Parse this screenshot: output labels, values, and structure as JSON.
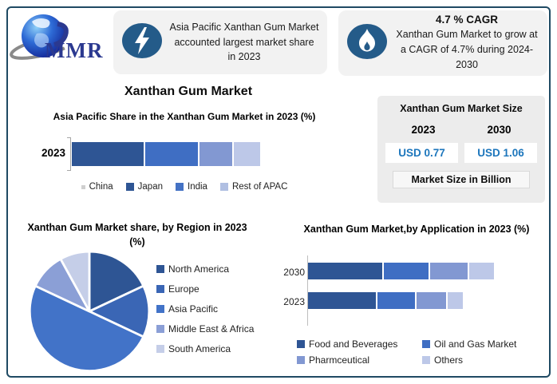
{
  "logo": {
    "text": "MMR"
  },
  "header": {
    "callout_share": {
      "icon": "lightning-icon",
      "text": "Asia Pacific Xanthan Gum Market accounted largest market share in 2023"
    },
    "callout_cagr": {
      "icon": "flame-icon",
      "title": "4.7 % CAGR",
      "text": "Xanthan Gum Market to grow at a CAGR of 4.7% during 2024-2030"
    }
  },
  "main_title": "Xanthan Gum Market",
  "market_size": {
    "title": "Xanthan Gum Market Size",
    "years": [
      "2023",
      "2030"
    ],
    "values": [
      "USD 0.77",
      "USD 1.06"
    ],
    "note": "Market Size in Billion",
    "value_color": "#1C76BC"
  },
  "chart_data": [
    {
      "id": "apac_share",
      "type": "bar",
      "orientation": "horizontal-stacked",
      "title": "Asia Pacific Share in the Xanthan Gum Market in 2023 (%)",
      "categories": [
        "2023"
      ],
      "series": [
        {
          "name": "China",
          "values": [
            39
          ],
          "color": "#2E5594",
          "legend_color": "#CFCFCF",
          "legend_small": true
        },
        {
          "name": "Japan",
          "values": [
            29
          ],
          "color": "#3F6EC3",
          "legend_color": "#2E5594"
        },
        {
          "name": "India",
          "values": [
            18
          ],
          "color": "#8298D2",
          "legend_color": "#4472C4"
        },
        {
          "name": "Rest of APAC",
          "values": [
            14
          ],
          "color": "#BDC8E8",
          "legend_color": "#B0BFE2"
        }
      ],
      "xlim": [
        0,
        100
      ],
      "legend_position": "bottom"
    },
    {
      "id": "region_share",
      "type": "pie",
      "title": "Xanthan Gum Market share, by Region in 2023 (%)",
      "labels": [
        "North America",
        "Europe",
        "Asia Pacific",
        "Middle East & Africa",
        "South America"
      ],
      "values": [
        18,
        14,
        50,
        10,
        8
      ],
      "colors": [
        "#2E5594",
        "#3A66B5",
        "#4273C8",
        "#8B9FD6",
        "#C5CEE8"
      ],
      "start_angle": "top-clockwise",
      "legend_position": "right"
    },
    {
      "id": "application",
      "type": "bar",
      "orientation": "horizontal-stacked",
      "title": "Xanthan Gum Market,by Application in 2023 (%)",
      "categories": [
        "2030",
        "2023"
      ],
      "series": [
        {
          "name": "Food and Beverages",
          "values": [
            49,
            45
          ],
          "color": "#2E5594"
        },
        {
          "name": "Oil and Gas Market",
          "values": [
            30,
            25
          ],
          "color": "#3F6EC3"
        },
        {
          "name": "Pharmceutical",
          "values": [
            25,
            20
          ],
          "color": "#8298D2"
        },
        {
          "name": "Others",
          "values": [
            16,
            10
          ],
          "color": "#BDC8E8"
        }
      ],
      "scale_max_total": 120,
      "legend_position": "bottom"
    }
  ],
  "colors": {
    "frame_border": "#1F4A63",
    "icon_bg": "#245B89",
    "callout_bg": "#F2F2F2",
    "panel_bg": "#ECECEC",
    "logo_blue": "#2B3990"
  }
}
